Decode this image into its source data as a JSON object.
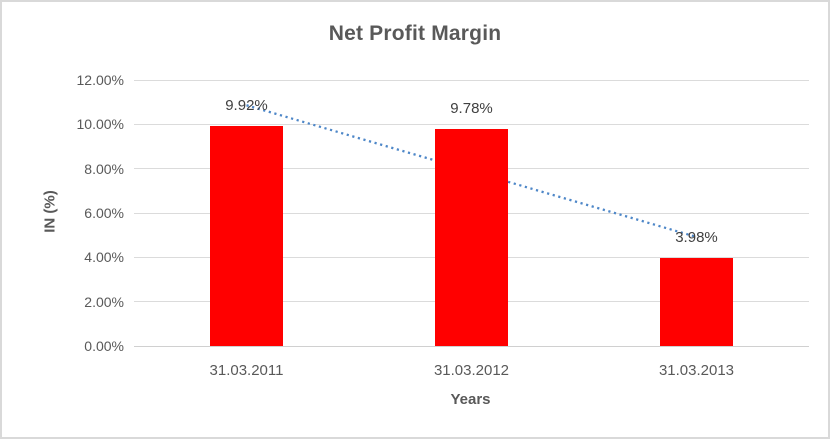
{
  "chart_data": {
    "type": "bar",
    "title": "Net Profit Margin",
    "xlabel": "Years",
    "ylabel": "IN (%)",
    "categories": [
      "31.03.2011",
      "31.03.2012",
      "31.03.2013"
    ],
    "values": [
      9.92,
      9.78,
      3.98
    ],
    "data_labels": [
      "9.92%",
      "9.78%",
      "3.98%"
    ],
    "ylim": [
      0,
      12
    ],
    "ytick_values": [
      0,
      2,
      4,
      6,
      8,
      10,
      12
    ],
    "ytick_labels": [
      "0.00%",
      "2.00%",
      "4.00%",
      "6.00%",
      "8.00%",
      "10.00%",
      "12.00%"
    ],
    "grid": true,
    "legend": "none",
    "trendline": {
      "type": "linear",
      "style": "dotted",
      "start_value": 10.86,
      "end_value": 4.92
    },
    "colors": {
      "bar": "#FF0000",
      "trendline": "#4E87C8",
      "gridline": "#DBDBDB",
      "axis_line": "#D0D0D0",
      "text": "#595959",
      "data_label_text": "#404040",
      "border": "#D9D9D9",
      "background": "#FFFFFF"
    }
  }
}
